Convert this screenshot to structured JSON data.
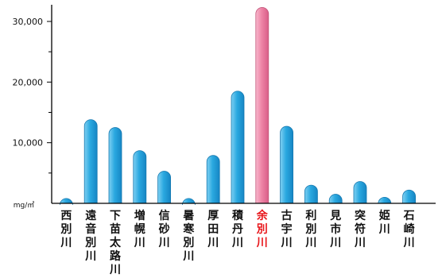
{
  "chart_data": {
    "type": "bar",
    "categories": [
      "西別川",
      "遠音別川",
      "下苗太路川",
      "増幌川",
      "信砂川",
      "暑寒別川",
      "厚田川",
      "積丹川",
      "余別川",
      "古宇川",
      "利別川",
      "見市川",
      "突符川",
      "姫川",
      "石崎川"
    ],
    "values": [
      800,
      13800,
      12500,
      8700,
      5300,
      800,
      7900,
      18500,
      32300,
      12700,
      3000,
      1500,
      3600,
      1000,
      2200
    ],
    "highlight_index": 8,
    "unit": "mg/㎡",
    "ylim": [
      0,
      33000
    ],
    "yticks": [
      10000,
      20000,
      30000
    ],
    "ytick_labels": [
      "10,000",
      "20,000",
      "30,000"
    ],
    "xlabel": "",
    "ylabel": "",
    "title": "",
    "grid": false,
    "colors": {
      "bar": "#29a9e1",
      "bar_highlight": "#ec7ba0",
      "highlight_label": "#e8161b",
      "label": "#111111",
      "axis": "#000000"
    }
  }
}
